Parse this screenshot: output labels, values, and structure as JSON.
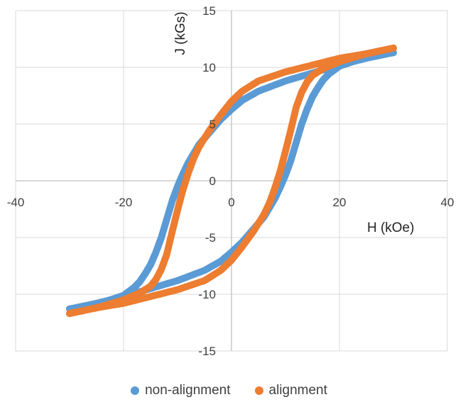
{
  "chart_data": {
    "type": "scatter",
    "xlabel": "H (kOe)",
    "ylabel": "J (kGs)",
    "xlim": [
      -40,
      40
    ],
    "ylim": [
      -15,
      15
    ],
    "xticks": [
      -40,
      -20,
      0,
      20,
      40
    ],
    "yticks": [
      -15,
      -10,
      -5,
      0,
      5,
      10,
      15
    ],
    "grid": true,
    "legend_position": "bottom",
    "series": [
      {
        "name": "non-alignment",
        "color": "#5B9BD5",
        "upper_branch": {
          "x": [
            30,
            25,
            20,
            15,
            10,
            5,
            2,
            0,
            -2,
            -4,
            -6,
            -8,
            -9,
            -10,
            -11,
            -12,
            -13,
            -14,
            -15,
            -16,
            -17,
            -18,
            -20,
            -25,
            -30
          ],
          "y": [
            11.3,
            10.8,
            10.2,
            9.5,
            8.8,
            7.9,
            7.1,
            6.3,
            5.4,
            4.3,
            3.2,
            1.6,
            0.6,
            -0.5,
            -1.8,
            -3.4,
            -5.0,
            -6.3,
            -7.4,
            -8.2,
            -8.9,
            -9.4,
            -10.1,
            -10.9,
            -11.3
          ]
        },
        "lower_branch": {
          "x": [
            -30,
            -25,
            -20,
            -15,
            -10,
            -5,
            -2,
            0,
            2,
            4,
            6,
            8,
            9,
            10,
            11,
            12,
            13,
            14,
            15,
            16,
            17,
            18,
            20,
            25,
            30
          ],
          "y": [
            -11.3,
            -10.8,
            -10.2,
            -9.5,
            -8.8,
            -7.9,
            -7.1,
            -6.3,
            -5.4,
            -4.3,
            -3.2,
            -1.6,
            -0.6,
            0.5,
            1.8,
            3.4,
            5.0,
            6.3,
            7.4,
            8.2,
            8.9,
            9.4,
            10.1,
            10.9,
            11.3
          ]
        }
      },
      {
        "name": "alignment",
        "color": "#ED7D31",
        "upper_branch": {
          "x": [
            30,
            25,
            20,
            15,
            10,
            5,
            2,
            0,
            -2,
            -4,
            -6,
            -7,
            -8,
            -9,
            -10,
            -11,
            -12,
            -13,
            -14,
            -15,
            -16,
            -17,
            -18,
            -19,
            -20,
            -25,
            -30
          ],
          "y": [
            11.7,
            11.2,
            10.8,
            10.2,
            9.6,
            8.8,
            7.9,
            7.0,
            5.8,
            4.5,
            3.0,
            2.0,
            0.7,
            -0.8,
            -2.6,
            -4.5,
            -6.5,
            -7.8,
            -8.7,
            -9.3,
            -9.6,
            -9.9,
            -10.1,
            -10.3,
            -10.5,
            -11.2,
            -11.7
          ]
        },
        "lower_branch": {
          "x": [
            -30,
            -25,
            -20,
            -15,
            -10,
            -5,
            -2,
            0,
            2,
            4,
            6,
            7,
            8,
            9,
            10,
            11,
            12,
            13,
            14,
            15,
            16,
            17,
            18,
            19,
            20,
            25,
            30
          ],
          "y": [
            -11.7,
            -11.2,
            -10.8,
            -10.2,
            -9.6,
            -8.8,
            -7.9,
            -7.0,
            -5.8,
            -4.5,
            -3.0,
            -2.0,
            -0.7,
            0.8,
            2.6,
            4.5,
            6.5,
            7.8,
            8.7,
            9.3,
            9.6,
            9.9,
            10.1,
            10.3,
            10.5,
            11.2,
            11.7
          ]
        }
      }
    ]
  }
}
